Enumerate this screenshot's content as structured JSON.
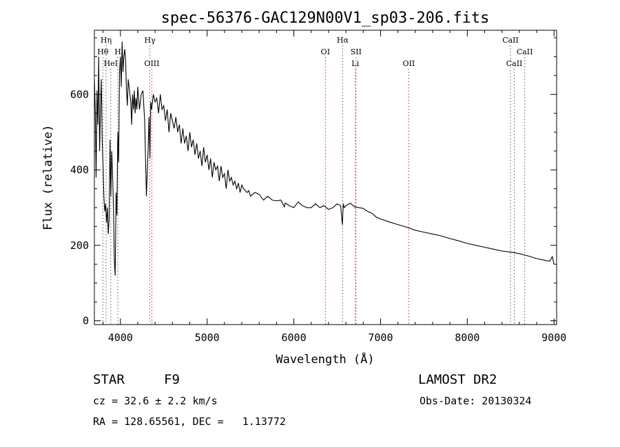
{
  "chart_data": {
    "type": "line",
    "title": "spec-56376-GAC129N00V1_sp03-206.fits",
    "xlabel": "Wavelength (Å)",
    "ylabel": "Flux (relative)",
    "xlim": [
      3700,
      9030
    ],
    "ylim": [
      -10,
      770
    ],
    "xticks": [
      4000,
      5000,
      6000,
      7000,
      8000,
      9000
    ],
    "yticks": [
      0,
      200,
      400,
      600
    ],
    "grid": false,
    "series": [
      {
        "x": [
          3700,
          3710,
          3720,
          3730,
          3740,
          3750,
          3760,
          3770,
          3780,
          3790,
          3800,
          3810,
          3820,
          3830,
          3840,
          3850,
          3860,
          3870,
          3880,
          3890,
          3900,
          3910,
          3920,
          3930,
          3940,
          3950,
          3960,
          3970,
          3980,
          3990,
          4000,
          4010,
          4020,
          4030,
          4040,
          4050,
          4060,
          4070,
          4080,
          4090,
          4100,
          4110,
          4120,
          4130,
          4140,
          4150,
          4160,
          4170,
          4180,
          4190,
          4200,
          4220,
          4240,
          4260,
          4280,
          4300,
          4320,
          4330,
          4340,
          4350,
          4360,
          4380,
          4400,
          4420,
          4440,
          4460,
          4480,
          4500,
          4520,
          4540,
          4560,
          4580,
          4600,
          4620,
          4640,
          4660,
          4680,
          4700,
          4720,
          4740,
          4760,
          4780,
          4800,
          4820,
          4840,
          4860,
          4880,
          4900,
          4920,
          4940,
          4960,
          4980,
          5000,
          5020,
          5040,
          5060,
          5080,
          5100,
          5120,
          5140,
          5160,
          5180,
          5200,
          5220,
          5240,
          5260,
          5280,
          5300,
          5320,
          5340,
          5360,
          5380,
          5400,
          5420,
          5440,
          5460,
          5480,
          5500,
          5550,
          5600,
          5650,
          5700,
          5750,
          5800,
          5850,
          5890,
          5900,
          5950,
          6000,
          6050,
          6100,
          6150,
          6200,
          6250,
          6300,
          6350,
          6400,
          6450,
          6500,
          6540,
          6560,
          6570,
          6580,
          6600,
          6650,
          6700,
          6750,
          6800,
          6850,
          6900,
          6950,
          7000,
          7100,
          7200,
          7300,
          7400,
          7500,
          7600,
          7700,
          7800,
          7900,
          8000,
          8100,
          8200,
          8300,
          8400,
          8500,
          8600,
          8700,
          8800,
          8900,
          8950,
          8980,
          9000
        ],
        "y": [
          640,
          560,
          380,
          610,
          520,
          700,
          450,
          560,
          640,
          480,
          410,
          330,
          290,
          310,
          260,
          300,
          230,
          270,
          480,
          330,
          450,
          390,
          300,
          160,
          120,
          340,
          280,
          500,
          420,
          660,
          700,
          620,
          740,
          660,
          700,
          720,
          690,
          610,
          570,
          640,
          620,
          600,
          580,
          520,
          600,
          560,
          610,
          550,
          590,
          560,
          620,
          560,
          600,
          610,
          530,
          330,
          460,
          540,
          430,
          580,
          560,
          600,
          580,
          590,
          550,
          600,
          560,
          570,
          530,
          560,
          500,
          550,
          530,
          510,
          540,
          500,
          520,
          470,
          510,
          470,
          490,
          450,
          500,
          460,
          480,
          440,
          470,
          430,
          450,
          410,
          460,
          420,
          440,
          400,
          430,
          380,
          420,
          400,
          410,
          370,
          410,
          380,
          390,
          350,
          400,
          370,
          380,
          360,
          370,
          350,
          365,
          340,
          360,
          350,
          345,
          340,
          345,
          330,
          340,
          335,
          320,
          330,
          320,
          318,
          320,
          302,
          312,
          305,
          300,
          315,
          305,
          300,
          300,
          310,
          300,
          305,
          295,
          300,
          310,
          305,
          255,
          310,
          300,
          305,
          312,
          302,
          300,
          298,
          290,
          285,
          275,
          270,
          262,
          255,
          248,
          240,
          235,
          230,
          225,
          218,
          212,
          205,
          200,
          195,
          190,
          185,
          182,
          178,
          172,
          165,
          160,
          158,
          170,
          150
        ]
      }
    ],
    "lines": [
      {
        "label": "Hη",
        "x": 3835,
        "row": 0,
        "color": "#555555"
      },
      {
        "label": "Hθ",
        "x": 3798,
        "row": 1,
        "color": "#555555"
      },
      {
        "label": "H",
        "x": 3970,
        "row": 1,
        "color": "#555555"
      },
      {
        "label": "HeI",
        "x": 3889,
        "row": 2,
        "color": "#555555"
      },
      {
        "label": "Hγ",
        "x": 4340,
        "row": 0,
        "color": "#555555"
      },
      {
        "label": "OIII",
        "x": 4363,
        "row": 2,
        "color": "#cc2222"
      },
      {
        "label": "OI",
        "x": 6364,
        "row": 1,
        "color": "#cc2222"
      },
      {
        "label": "Hα",
        "x": 6563,
        "row": 0,
        "color": "#555555"
      },
      {
        "label": "SII",
        "x": 6717,
        "row": 1,
        "color": "#cc2222"
      },
      {
        "label": "Li",
        "x": 6708,
        "row": 2,
        "color": "#555555"
      },
      {
        "label": "OII",
        "x": 7325,
        "row": 2,
        "color": "#cc2222"
      },
      {
        "label": "CaII",
        "x": 8498,
        "row": 0,
        "color": "#555555"
      },
      {
        "label": "CaII",
        "x": 8662,
        "row": 1,
        "color": "#555555"
      },
      {
        "label": "CaII",
        "x": 8542,
        "row": 2,
        "color": "#555555"
      }
    ]
  },
  "info": {
    "object_type": "STAR",
    "subclass": "F9",
    "survey": "LAMOST DR2",
    "cz": "cz = 32.6 ± 2.2 km/s",
    "obs_date": "Obs-Date: 20130324",
    "coords": "RA = 128.65561, DEC =   1.13772"
  }
}
